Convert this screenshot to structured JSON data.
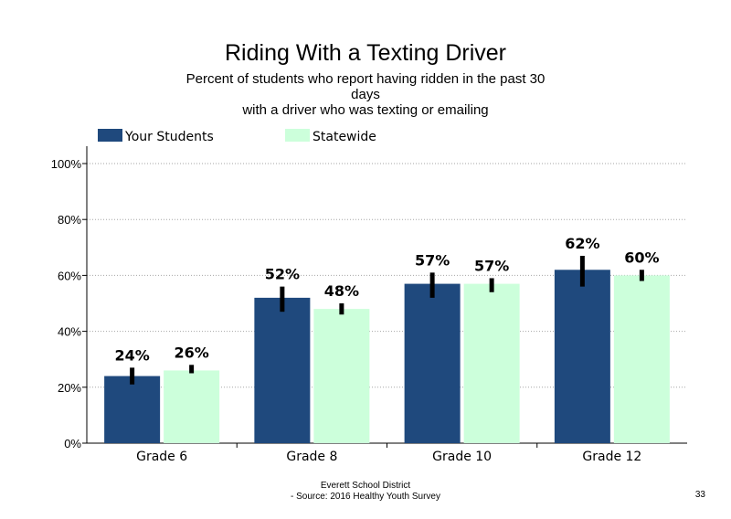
{
  "title": "Riding With a Texting Driver",
  "subtitle": {
    "line1": "Percent of students who report having ridden in the past 30",
    "line2": "days",
    "line3": "with a driver who was texting or emailing"
  },
  "footer": {
    "line1": "Everett School District",
    "line2": "- Source: 2016 Healthy  Youth Survey"
  },
  "page_number": "33",
  "colors": {
    "your_students": "#1f497d",
    "statewide": "#ccffdb",
    "error_bar": "#000000",
    "gridline": "#a6a6a6"
  },
  "chart_data": {
    "type": "bar",
    "categories": [
      "Grade 6",
      "Grade 8",
      "Grade 10",
      "Grade 12"
    ],
    "series": [
      {
        "name": "Your Students",
        "values": [
          24,
          52,
          57,
          62
        ],
        "labels": [
          "24%",
          "52%",
          "57%",
          "62%"
        ],
        "ci_low": [
          21,
          47,
          52,
          56
        ],
        "ci_high": [
          27,
          56,
          61,
          67
        ]
      },
      {
        "name": "Statewide",
        "values": [
          26,
          48,
          57,
          60
        ],
        "labels": [
          "26%",
          "48%",
          "57%",
          "60%"
        ],
        "ci_low": [
          25,
          46,
          54,
          58
        ],
        "ci_high": [
          28,
          50,
          59,
          62
        ]
      }
    ],
    "ylim": [
      0,
      100
    ],
    "yticks": [
      0,
      20,
      40,
      60,
      80,
      100
    ],
    "ytick_labels": [
      "0%",
      "20%",
      "40%",
      "60%",
      "80%",
      "100%"
    ],
    "xlabel": "",
    "ylabel": "",
    "grid": "horizontal dotted",
    "legend_position": "top-left"
  }
}
